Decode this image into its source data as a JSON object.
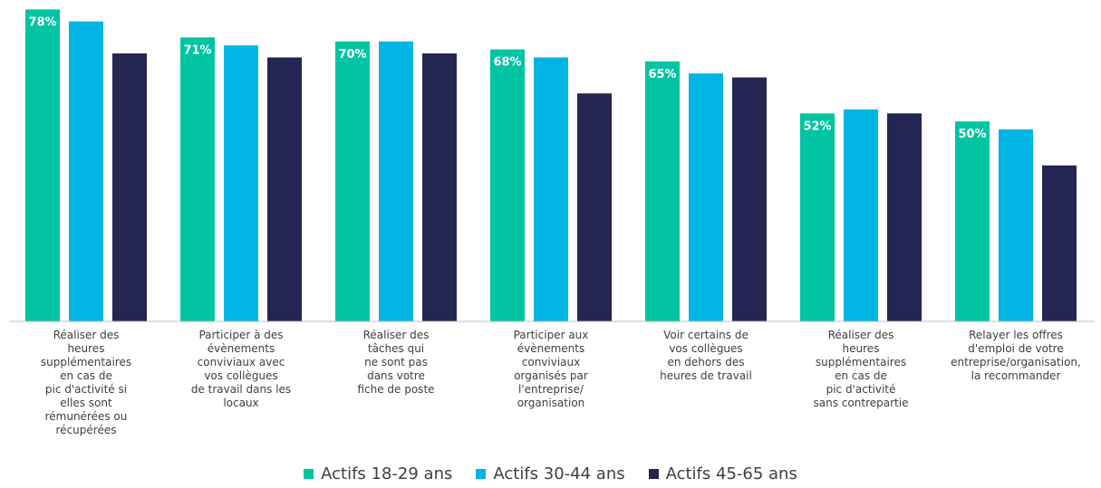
{
  "chart_data": {
    "type": "bar",
    "categories": [
      [
        "Réaliser des",
        "heures",
        "supplémentaires",
        "en cas de",
        "pic d'activité si",
        "elles sont",
        "rémunérées ou",
        "récupérées"
      ],
      [
        "Participer à des",
        "évènements",
        "conviviaux avec",
        "vos collègues",
        "de travail dans les",
        "locaux"
      ],
      [
        "Réaliser des",
        "tâches qui",
        "ne sont pas",
        "dans votre",
        "fiche de poste"
      ],
      [
        "Participer aux",
        "évènements",
        "conviviaux",
        "organisés par",
        "l'entreprise/",
        "organisation"
      ],
      [
        "Voir certains de",
        "vos collègues",
        "en dehors des",
        "heures de travail"
      ],
      [
        "Réaliser des",
        "heures",
        "supplémentaires",
        "en cas de",
        "pic d'activité",
        "sans contrepartie"
      ],
      [
        "Relayer les offres",
        "d'emploi de votre",
        "entreprise/organisation,",
        "la recommander"
      ]
    ],
    "series": [
      {
        "name": "Actifs 18-29 ans",
        "color": "#00C4A2",
        "values": [
          78,
          71,
          70,
          68,
          65,
          52,
          50
        ],
        "labels": [
          "78%",
          "71%",
          "70%",
          "68%",
          "65%",
          "52%",
          "50%"
        ]
      },
      {
        "name": "Actifs 30-44 ans",
        "color": "#00B4E4",
        "values": [
          75,
          69,
          70,
          66,
          62,
          53,
          48
        ]
      },
      {
        "name": "Actifs 45-65 ans",
        "color": "#252553",
        "values": [
          67,
          66,
          67,
          57,
          61,
          52,
          39
        ]
      }
    ],
    "ylim": [
      0,
      79
    ],
    "legend_position": "bottom"
  }
}
